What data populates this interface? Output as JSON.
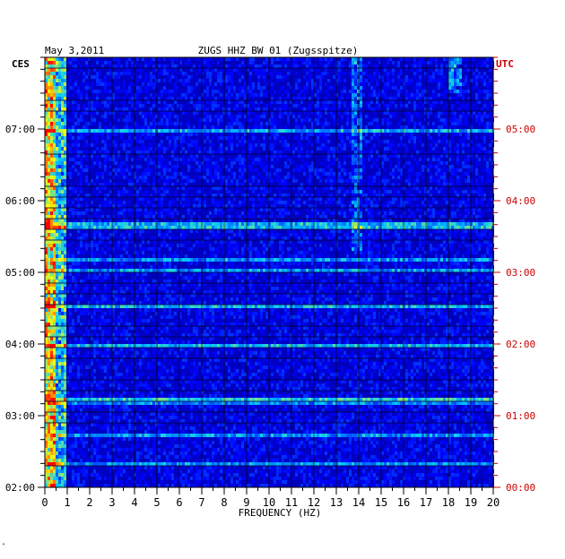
{
  "chart_data": {
    "type": "heatmap",
    "header_date": "May 3,2011",
    "title": "ZUGS HHZ BW 01 (Zugsspitze)",
    "left_axis_label": "CES",
    "right_axis_label": "UTC",
    "xlabel": "FREQUENCY (HZ)",
    "xlim": [
      0,
      20
    ],
    "x_ticks": [
      "0",
      "1",
      "2",
      "3",
      "4",
      "5",
      "6",
      "7",
      "8",
      "9",
      "10",
      "11",
      "12",
      "13",
      "14",
      "15",
      "16",
      "17",
      "18",
      "19",
      "20"
    ],
    "left_time_ticks": [
      "07:00",
      "06:00",
      "05:00",
      "04:00",
      "03:00",
      "02:00"
    ],
    "right_time_ticks": [
      "05:00",
      "04:00",
      "03:00",
      "02:00",
      "01:00",
      "00:00"
    ],
    "time_range_local_hours": [
      2,
      8
    ],
    "colormap": [
      "#00007f",
      "#0000ff",
      "#00c8ff",
      "#ffff00",
      "#ff0000"
    ],
    "background_color": "#0000c0",
    "right_label_color": "#cc0000"
  },
  "corner_mark": "\""
}
